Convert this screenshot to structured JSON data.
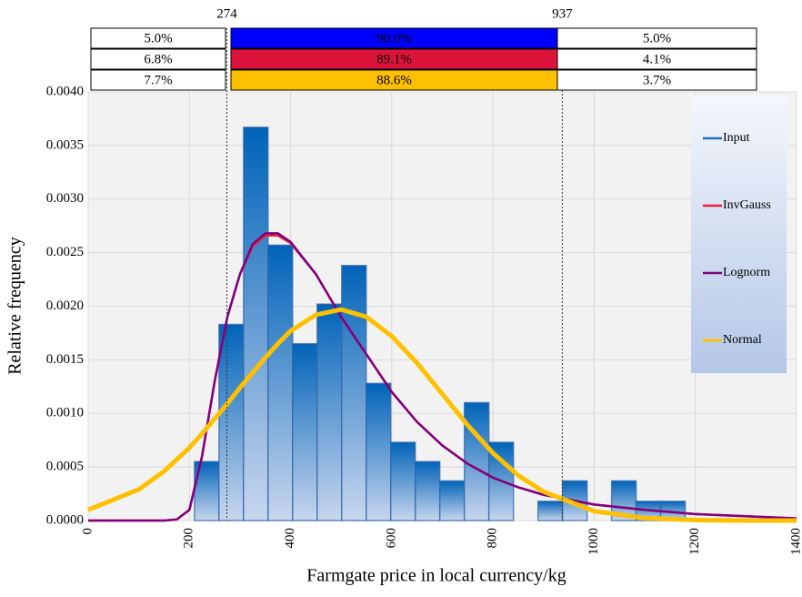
{
  "chart_data": {
    "type": "histogram",
    "xlabel": "Farmgate price in local currency/kg",
    "ylabel": "Relative frequency",
    "series_name": "Input",
    "color": "#1f6fbf",
    "bins": [
      210,
      258.5,
      307,
      355.5,
      404,
      452.5,
      501,
      549.5,
      598,
      646.5,
      695,
      743.5,
      792,
      840.5,
      889,
      937.5,
      986,
      1034.5,
      1083,
      1131.5,
      1180
    ],
    "values": [
      0.00055,
      0.00183,
      0.00367,
      0.00257,
      0.00165,
      0.00202,
      0.00238,
      0.00128,
      0.00073,
      0.00055,
      0.00037,
      0.0011,
      0.00073,
      0,
      0.00018,
      0.00037,
      0,
      0.00037,
      0.00018,
      0.00018
    ],
    "curve_x": [
      0,
      100,
      150,
      175,
      200,
      225,
      250,
      275,
      300,
      325,
      350,
      375,
      400,
      450,
      500,
      550,
      600,
      650,
      700,
      750,
      800,
      850,
      900,
      1000,
      1100,
      1200,
      1300,
      1400
    ],
    "series": [
      {
        "name": "InvGauss",
        "color": "#e8213a",
        "width": 2.5,
        "values": [
          0,
          0,
          0,
          1e-05,
          0.0001,
          0.0006,
          0.0013,
          0.0019,
          0.0023,
          0.00256,
          0.00266,
          0.00266,
          0.00259,
          0.0023,
          0.0019,
          0.00155,
          0.0012,
          0.00092,
          0.0007,
          0.00053,
          0.0004,
          0.00031,
          0.00024,
          0.00015,
          0.0001,
          6e-05,
          4e-05,
          2e-05
        ]
      },
      {
        "name": "Lognorm",
        "color": "#80007f",
        "width": 2.5,
        "values": [
          0,
          0,
          0,
          1e-05,
          0.0001,
          0.0006,
          0.0013,
          0.0019,
          0.0023,
          0.00258,
          0.00268,
          0.00268,
          0.0026,
          0.0023,
          0.0019,
          0.00155,
          0.0012,
          0.00092,
          0.0007,
          0.00053,
          0.0004,
          0.00031,
          0.00024,
          0.00015,
          0.0001,
          6e-05,
          4e-05,
          2e-05
        ]
      },
      {
        "name": "Normal",
        "color": "#ffc000",
        "width": 5,
        "values": [
          0.0001,
          0.00029,
          0.00046,
          0.00057,
          0.00068,
          0.00081,
          0.00095,
          0.00109,
          0.00124,
          0.00138,
          0.00152,
          0.00165,
          0.00177,
          0.00192,
          0.00197,
          0.0019,
          0.00172,
          0.00147,
          0.00118,
          0.00089,
          0.00063,
          0.00042,
          0.00027,
          8.8e-05,
          2.3e-05,
          4.6e-06,
          0,
          0
        ]
      }
    ],
    "xlim": [
      0,
      1400
    ],
    "ylim": [
      0,
      0.004
    ],
    "xticks": [
      0,
      200,
      400,
      600,
      800,
      1000,
      1200,
      1400
    ],
    "yticks": [
      {
        "value": 0,
        "label": "0.0000"
      },
      {
        "value": 0.0005,
        "label": "0.0005"
      },
      {
        "value": 0.001,
        "label": "0.0010"
      },
      {
        "value": 0.0015,
        "label": "0.0015"
      },
      {
        "value": 0.002,
        "label": "0.0020"
      },
      {
        "value": 0.0025,
        "label": "0.0025"
      },
      {
        "value": 0.003,
        "label": "0.0030"
      },
      {
        "value": 0.0035,
        "label": "0.0035"
      },
      {
        "value": 0.004,
        "label": "0.0040"
      }
    ],
    "grid": true,
    "legend": "right",
    "delimiters": [
      274,
      937
    ],
    "bands": [
      {
        "color": "#0000ff",
        "values": [
          5.0,
          90.0,
          5.0
        ],
        "value_labels": [
          "5.0%",
          "90.0%",
          "5.0%"
        ]
      },
      {
        "color": "#dc143c",
        "values": [
          6.8,
          89.1,
          4.1
        ],
        "value_labels": [
          "6.8%",
          "89.1%",
          "4.1%"
        ]
      },
      {
        "color": "#ffc000",
        "values": [
          7.7,
          88.6,
          3.7
        ],
        "value_labels": [
          "7.7%",
          "88.6%",
          "3.7%"
        ]
      }
    ]
  }
}
